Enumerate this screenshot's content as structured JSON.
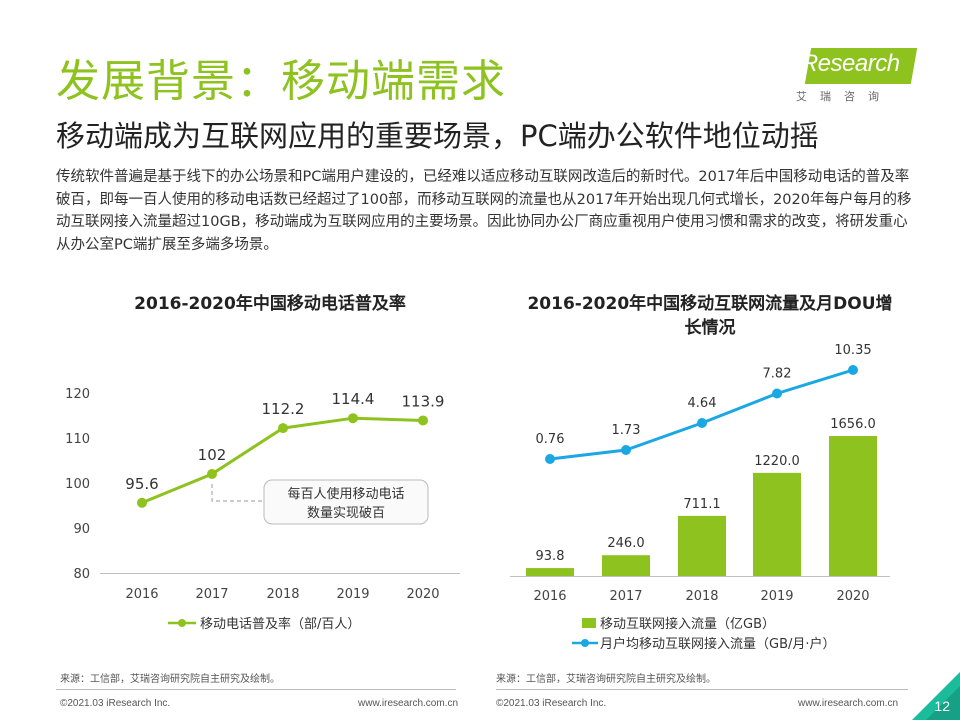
{
  "header": {
    "title": "发展背景：移动端需求",
    "subtitle": "移动端成为互联网应用的重要场景，PC端办公软件地位动摇",
    "body": "传统软件普遍是基于线下的办公场景和PC端用户建设的，已经难以适应移动互联网改造后的新时代。2017年后中国移动电话的普及率破百，即每一百人使用的移动电话数已经超过了100部，而移动互联网的流量也从2017年开始出现几何式增长，2020年每户每月的移动互联网接入流量超过10GB，移动端成为互联网应用的主要场景。因此协同办公厂商应重视用户使用习惯和需求的改变，将研发重心从办公室PC端扩展至多端多场景。"
  },
  "logo": {
    "name": "iResearch",
    "sub": "艾瑞咨询"
  },
  "colors": {
    "green": "#8dc21f",
    "blue": "#1aa7e4"
  },
  "chart_data": [
    {
      "type": "line",
      "title": "2016-2020年中国移动电话普及率",
      "categories": [
        "2016",
        "2017",
        "2018",
        "2019",
        "2020"
      ],
      "series": [
        {
          "name": "移动电话普及率（部/百人）",
          "values": [
            95.6,
            102,
            112.2,
            114.4,
            113.9
          ]
        }
      ],
      "ylim": [
        80,
        120
      ],
      "yticks": [
        80,
        90,
        100,
        110,
        120
      ],
      "annotation": "每百人使用移动电话数量实现破百",
      "grid": false,
      "legend": "bottom"
    },
    {
      "type": "bar",
      "title": "2016-2020年中国移动互联网流量及月DOU增长情况",
      "categories": [
        "2016",
        "2017",
        "2018",
        "2019",
        "2020"
      ],
      "series": [
        {
          "name": "移动互联网接入流量（亿GB）",
          "type": "bar",
          "values": [
            93.8,
            246.0,
            711.1,
            1220.0,
            1656.0
          ]
        },
        {
          "name": "月户均移动互联网接入流量（GB/月·户）",
          "type": "line",
          "values": [
            0.76,
            1.73,
            4.64,
            7.82,
            10.35
          ]
        }
      ],
      "grid": false,
      "legend": "bottom"
    }
  ],
  "footer": {
    "source_left": "来源：工信部，艾瑞咨询研究院自主研究及绘制。",
    "source_right": "来源：工信部，艾瑞咨询研究院自主研究及绘制。",
    "copyright_left": "©2021.03 iResearch Inc.",
    "site_left": "www.iresearch.com.cn",
    "copyright_right": "©2021.03 iResearch Inc.",
    "site_right": "www.iresearch.com.cn",
    "page": "12"
  }
}
